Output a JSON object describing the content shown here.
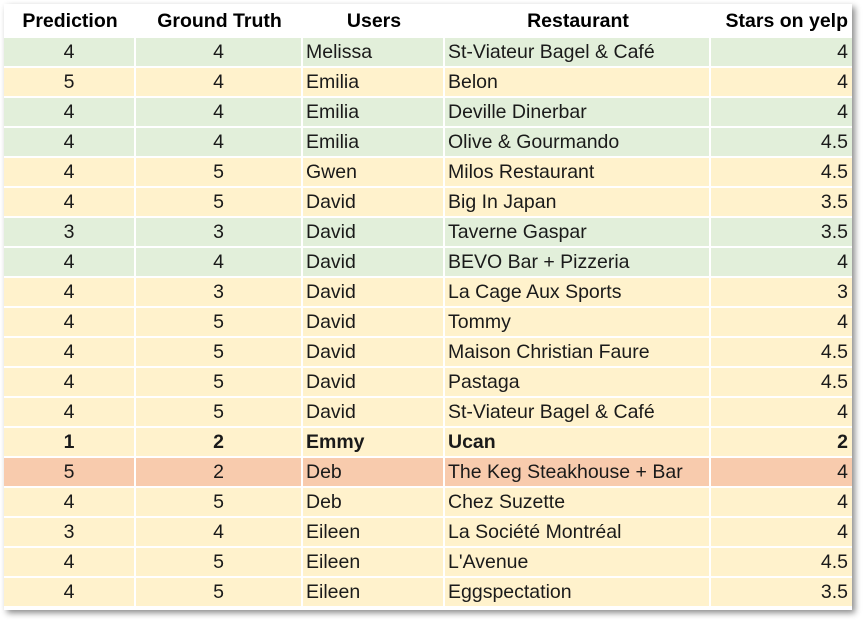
{
  "colors": {
    "match": "#e2efda",
    "close": "#fff2cc",
    "miss": "#f8cbad"
  },
  "headers": [
    "Prediction",
    "Ground Truth",
    "Users",
    "Restaurant",
    "Stars on yelp"
  ],
  "rows": [
    {
      "prediction": "4",
      "ground_truth": "4",
      "user": "Melissa",
      "restaurant": "St-Viateur Bagel & Café",
      "stars": "4",
      "status": "match",
      "bold": false
    },
    {
      "prediction": "5",
      "ground_truth": "4",
      "user": "Emilia",
      "restaurant": "Belon",
      "stars": "4",
      "status": "close",
      "bold": false
    },
    {
      "prediction": "4",
      "ground_truth": "4",
      "user": "Emilia",
      "restaurant": "Deville Dinerbar",
      "stars": "4",
      "status": "match",
      "bold": false
    },
    {
      "prediction": "4",
      "ground_truth": "4",
      "user": "Emilia",
      "restaurant": "Olive & Gourmando",
      "stars": "4.5",
      "status": "match",
      "bold": false
    },
    {
      "prediction": "4",
      "ground_truth": "5",
      "user": "Gwen",
      "restaurant": "Milos Restaurant",
      "stars": "4.5",
      "status": "close",
      "bold": false
    },
    {
      "prediction": "4",
      "ground_truth": "5",
      "user": "David",
      "restaurant": "Big In Japan",
      "stars": "3.5",
      "status": "close",
      "bold": false
    },
    {
      "prediction": "3",
      "ground_truth": "3",
      "user": "David",
      "restaurant": "Taverne Gaspar",
      "stars": "3.5",
      "status": "match",
      "bold": false
    },
    {
      "prediction": "4",
      "ground_truth": "4",
      "user": "David",
      "restaurant": "BEVO Bar + Pizzeria",
      "stars": "4",
      "status": "match",
      "bold": false
    },
    {
      "prediction": "4",
      "ground_truth": "3",
      "user": "David",
      "restaurant": "La Cage Aux Sports",
      "stars": "3",
      "status": "close",
      "bold": false
    },
    {
      "prediction": "4",
      "ground_truth": "5",
      "user": "David",
      "restaurant": "Tommy",
      "stars": "4",
      "status": "close",
      "bold": false
    },
    {
      "prediction": "4",
      "ground_truth": "5",
      "user": "David",
      "restaurant": "Maison Christian Faure",
      "stars": "4.5",
      "status": "close",
      "bold": false
    },
    {
      "prediction": "4",
      "ground_truth": "5",
      "user": "David",
      "restaurant": "Pastaga",
      "stars": "4.5",
      "status": "close",
      "bold": false
    },
    {
      "prediction": "4",
      "ground_truth": "5",
      "user": "David",
      "restaurant": "St-Viateur Bagel & Café",
      "stars": "4",
      "status": "close",
      "bold": false
    },
    {
      "prediction": "1",
      "ground_truth": "2",
      "user": "Emmy",
      "restaurant": "Ucan",
      "stars": "2",
      "status": "close",
      "bold": true
    },
    {
      "prediction": "5",
      "ground_truth": "2",
      "user": "Deb",
      "restaurant": "The Keg Steakhouse + Bar",
      "stars": "4",
      "status": "miss",
      "bold": false
    },
    {
      "prediction": "4",
      "ground_truth": "5",
      "user": "Deb",
      "restaurant": "Chez Suzette",
      "stars": "4",
      "status": "close",
      "bold": false
    },
    {
      "prediction": "3",
      "ground_truth": "4",
      "user": "Eileen",
      "restaurant": "La Société Montréal",
      "stars": "4",
      "status": "close",
      "bold": false
    },
    {
      "prediction": "4",
      "ground_truth": "5",
      "user": "Eileen",
      "restaurant": "L'Avenue",
      "stars": "4.5",
      "status": "close",
      "bold": false
    },
    {
      "prediction": "4",
      "ground_truth": "5",
      "user": "Eileen",
      "restaurant": "Eggspectation",
      "stars": "3.5",
      "status": "close",
      "bold": false
    }
  ]
}
